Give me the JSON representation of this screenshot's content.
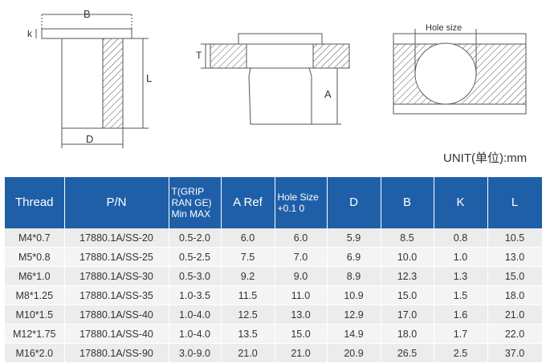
{
  "diagram_labels": {
    "B": "B",
    "k": "k",
    "L": "L",
    "D": "D",
    "T": "T",
    "A": "A",
    "hole_size": "Hole size"
  },
  "unit": "UNIT(单位):mm",
  "table": {
    "headers": [
      "Thread",
      "P/N",
      "T(GRIP RAN GE) Min MAX",
      "A Ref",
      "Hole Size +0.1 0",
      "D",
      "B",
      "K",
      "L"
    ],
    "rows": [
      [
        "M4*0.7",
        "17880.1A/SS-20",
        "0.5-2.0",
        "6.0",
        "6.0",
        "5.9",
        "8.5",
        "0.8",
        "10.5"
      ],
      [
        "M5*0.8",
        "17880.1A/SS-25",
        "0.5-2.5",
        "7.5",
        "7.0",
        "6.9",
        "10.0",
        "1.0",
        "13.0"
      ],
      [
        "M6*1.0",
        "17880.1A/SS-30",
        "0.5-3.0",
        "9.2",
        "9.0",
        "8.9",
        "12.3",
        "1.3",
        "15.0"
      ],
      [
        "M8*1.25",
        "17880.1A/SS-35",
        "1.0-3.5",
        "11.5",
        "11.0",
        "10.9",
        "15.0",
        "1.5",
        "18.0"
      ],
      [
        "M10*1.5",
        "17880.1A/SS-40",
        "1.0-4.0",
        "12.5",
        "13.0",
        "12.9",
        "17.0",
        "1.6",
        "21.0"
      ],
      [
        "M12*1.75",
        "17880.1A/SS-40",
        "1.0-4.0",
        "13.5",
        "15.0",
        "14.9",
        "18.0",
        "1.7",
        "22.0"
      ],
      [
        "M16*2.0",
        "17880.1A/SS-90",
        "3.0-9.0",
        "21.0",
        "21.0",
        "20.9",
        "26.5",
        "2.5",
        "37.0"
      ]
    ]
  },
  "colors": {
    "header_bg": "#1f5fa8",
    "row_bg": "#ececec"
  }
}
